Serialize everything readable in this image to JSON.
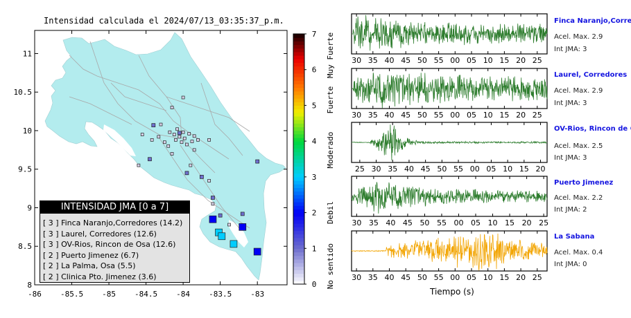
{
  "map_title": "Intensidad calculada el 2024/07/13_03:35:37_p.m.",
  "colors": {
    "land": "#b3ecee",
    "water": "#ffffff",
    "road": "#a8a8a8",
    "station": "#d9d2e9",
    "strong_trace": "#2e7d2e",
    "weak_trace": "#f2a400",
    "station_name": "#1515e0"
  },
  "chart_data": [
    {
      "type": "scatter",
      "title": "Intensidad calculada el 2024/07/13_03:35:37_p.m.",
      "xlabel": "",
      "ylabel": "",
      "xlim": [
        -86,
        -82.6
      ],
      "ylim": [
        8,
        11.3
      ],
      "x_ticks": [
        "-86",
        "-85.5",
        "-85",
        "-84.5",
        "-84",
        "-83.5",
        "-83"
      ],
      "y_ticks": [
        "8",
        "8.5",
        "9",
        "9.5",
        "10",
        "10.5",
        "11"
      ],
      "points": [
        {
          "x": -83.52,
          "y": 8.68,
          "jma": 3
        },
        {
          "x": -83.48,
          "y": 8.63,
          "jma": 3
        },
        {
          "x": -83.32,
          "y": 8.53,
          "jma": 3
        },
        {
          "x": -83.0,
          "y": 8.43,
          "jma": 2
        },
        {
          "x": -83.6,
          "y": 8.85,
          "jma": 2
        },
        {
          "x": -83.2,
          "y": 8.75,
          "jma": 2
        },
        {
          "x": -83.0,
          "y": 9.6,
          "jma": 1
        },
        {
          "x": -83.5,
          "y": 8.9,
          "jma": 1
        },
        {
          "x": -83.2,
          "y": 8.92,
          "jma": 1
        },
        {
          "x": -83.6,
          "y": 9.13,
          "jma": 1
        },
        {
          "x": -84.45,
          "y": 9.63,
          "jma": 1
        },
        {
          "x": -83.95,
          "y": 9.45,
          "jma": 1
        },
        {
          "x": -83.75,
          "y": 9.4,
          "jma": 1
        },
        {
          "x": -84.4,
          "y": 10.07,
          "jma": 1
        },
        {
          "x": -84.05,
          "y": 9.97,
          "jma": 1
        },
        {
          "x": -84.0,
          "y": 10.43,
          "jma": 0
        },
        {
          "x": -84.15,
          "y": 10.3,
          "jma": 0
        },
        {
          "x": -84.55,
          "y": 9.95,
          "jma": 0
        },
        {
          "x": -84.42,
          "y": 9.88,
          "jma": 0
        },
        {
          "x": -84.33,
          "y": 9.92,
          "jma": 0
        },
        {
          "x": -84.3,
          "y": 10.08,
          "jma": 0
        },
        {
          "x": -84.25,
          "y": 9.85,
          "jma": 0
        },
        {
          "x": -84.18,
          "y": 9.98,
          "jma": 0
        },
        {
          "x": -84.12,
          "y": 9.95,
          "jma": 0
        },
        {
          "x": -84.1,
          "y": 9.88,
          "jma": 0
        },
        {
          "x": -84.08,
          "y": 10.02,
          "jma": 0
        },
        {
          "x": -84.05,
          "y": 9.92,
          "jma": 0
        },
        {
          "x": -84.02,
          "y": 9.85,
          "jma": 0
        },
        {
          "x": -84.0,
          "y": 9.98,
          "jma": 0
        },
        {
          "x": -83.98,
          "y": 9.9,
          "jma": 0
        },
        {
          "x": -83.95,
          "y": 9.82,
          "jma": 0
        },
        {
          "x": -83.92,
          "y": 9.96,
          "jma": 0
        },
        {
          "x": -83.88,
          "y": 9.86,
          "jma": 0
        },
        {
          "x": -83.85,
          "y": 9.93,
          "jma": 0
        },
        {
          "x": -83.8,
          "y": 9.88,
          "jma": 0
        },
        {
          "x": -83.65,
          "y": 9.88,
          "jma": 0
        },
        {
          "x": -84.2,
          "y": 9.8,
          "jma": 0
        },
        {
          "x": -83.9,
          "y": 9.55,
          "jma": 0
        },
        {
          "x": -83.65,
          "y": 9.35,
          "jma": 0
        },
        {
          "x": -84.6,
          "y": 9.55,
          "jma": 0
        },
        {
          "x": -83.85,
          "y": 9.75,
          "jma": 0
        },
        {
          "x": -84.15,
          "y": 9.7,
          "jma": 0
        },
        {
          "x": -83.6,
          "y": 9.05,
          "jma": 0
        },
        {
          "x": -83.38,
          "y": 8.78,
          "jma": 0
        }
      ]
    },
    {
      "type": "heatmap",
      "title": "",
      "range": [
        0,
        7
      ],
      "ticks": [
        "0",
        "1",
        "2",
        "3",
        "4",
        "5",
        "6",
        "7"
      ],
      "zones": [
        {
          "label": "No sentido",
          "from": 0,
          "to": 1
        },
        {
          "label": "Debil",
          "from": 1,
          "to": 3
        },
        {
          "label": "Moderado",
          "from": 3,
          "to": 4.5
        },
        {
          "label": "Fuerte",
          "from": 4.5,
          "to": 5.8
        },
        {
          "label": "Muy Fuerte",
          "from": 5.8,
          "to": 7
        }
      ]
    },
    {
      "type": "line",
      "title": "",
      "xlabel": "Tiempo (s)",
      "ylabel": "",
      "series": [
        {
          "name": "Finca Naranjo,Corredores",
          "acel": "Acel. Max. 2.9",
          "int": "Int JMA: 3",
          "color": "#2e7d2e",
          "x_ticks": [
            "30",
            "35",
            "40",
            "45",
            "50",
            "55",
            "00",
            "05",
            "10",
            "15",
            "20",
            "25"
          ],
          "tick_start": 30,
          "t0": 28.5,
          "t1": 88,
          "onset": 29,
          "peak_t": 30,
          "peak_amp": 0.9,
          "decay": 0.025,
          "base": 0.42,
          "seed": 11
        },
        {
          "name": "Laurel, Corredores",
          "acel": "Acel. Max. 2.9",
          "int": "Int JMA: 3",
          "color": "#2e7d2e",
          "x_ticks": [
            "30",
            "35",
            "40",
            "45",
            "50",
            "55",
            "00",
            "05",
            "10",
            "15",
            "20",
            "25"
          ],
          "tick_start": 30,
          "t0": 28.5,
          "t1": 88,
          "onset": 29,
          "peak_t": 37,
          "peak_amp": 0.9,
          "decay": 0.02,
          "base": 0.5,
          "seed": 23
        },
        {
          "name": "OV-Rios, Rincon de Osa",
          "acel": "Acel. Max. 2.5",
          "int": "Int JMA: 3",
          "color": "#2e7d2e",
          "x_ticks": [
            "25",
            "30",
            "35",
            "40",
            "45",
            "50",
            "55",
            "00",
            "05",
            "10",
            "15",
            "20"
          ],
          "tick_start": 25,
          "t0": 22.5,
          "t1": 82,
          "onset": 28,
          "peak_t": 35,
          "peak_amp": 0.9,
          "decay": 0.12,
          "base": 0.04,
          "seed": 37
        },
        {
          "name": "Puerto Jimenez",
          "acel": "Acel. Max. 2.2",
          "int": "Int JMA: 2",
          "color": "#2e7d2e",
          "x_ticks": [
            "30",
            "35",
            "40",
            "45",
            "50",
            "55",
            "00",
            "05",
            "10",
            "15",
            "20",
            "25"
          ],
          "tick_start": 30,
          "t0": 28.5,
          "t1": 86,
          "onset": 28.5,
          "peak_t": 36,
          "peak_amp": 0.85,
          "decay": 0.03,
          "base": 0.25,
          "seed": 41
        },
        {
          "name": "La Sabana",
          "acel": "Acel. Max. 0.4",
          "int": "Int JMA: 0",
          "color": "#f2a400",
          "x_ticks": [
            "30",
            "35",
            "40",
            "45",
            "50",
            "55",
            "00",
            "05",
            "10",
            "15",
            "20",
            "25"
          ],
          "tick_start": 30,
          "t0": 28.5,
          "t1": 88,
          "onset": 39,
          "peak_t": 72,
          "peak_amp": 0.9,
          "decay": 0.05,
          "base": 0.28,
          "seed": 53
        }
      ]
    }
  ],
  "legend": {
    "title": "INTENSIDAD JMA [0 a 7]",
    "rows": [
      "[ 3 ] Finca Naranjo,Corredores (14.2)",
      "[ 3 ] Laurel, Corredores (12.6)",
      "[ 3 ] OV-Rios, Rincon de Osa (12.6)",
      "[ 2 ] Puerto Jimenez (6.7)",
      "[ 2 ] La Palma, Osa (5.5)",
      "[ 2 ] Clinica Pto. Jimenez (3.6)"
    ]
  }
}
